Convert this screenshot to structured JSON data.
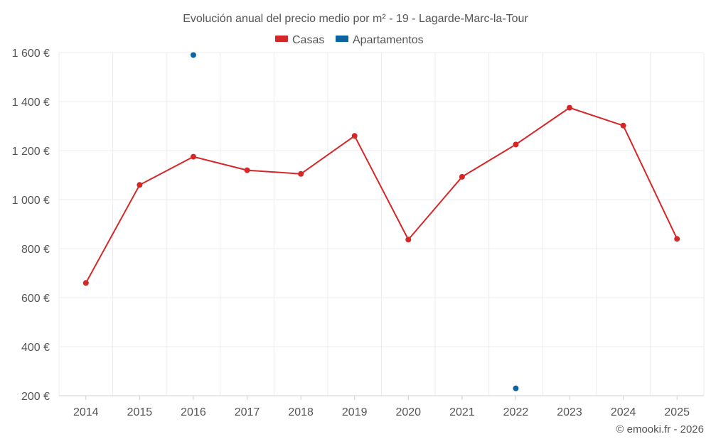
{
  "chart_data": {
    "type": "line",
    "title": "Evolución anual del precio medio por m² - 19 - Lagarde-Marc-la-Tour",
    "categories": [
      "2014",
      "2015",
      "2016",
      "2017",
      "2018",
      "2019",
      "2020",
      "2021",
      "2022",
      "2023",
      "2024",
      "2025"
    ],
    "series": [
      {
        "name": "Casas",
        "color": "#d62728",
        "values": [
          660,
          1060,
          1175,
          1120,
          1105,
          1260,
          837,
          1093,
          1225,
          1375,
          1302,
          840
        ]
      },
      {
        "name": "Apartamentos",
        "color": "#0b63a3",
        "values": [
          null,
          null,
          1590,
          null,
          null,
          null,
          null,
          null,
          230,
          null,
          null,
          null
        ]
      }
    ],
    "ylim": [
      200,
      1600
    ],
    "yticks": [
      200,
      400,
      600,
      800,
      1000,
      1200,
      1400,
      1600
    ],
    "ytick_labels": [
      "200 €",
      "400 €",
      "600 €",
      "800 €",
      "1 000 €",
      "1 200 €",
      "1 400 €",
      "1 600 €"
    ],
    "xlabel": "",
    "ylabel": "",
    "grid": true,
    "legend": "top-center"
  },
  "credit": "© emooki.fr - 2026"
}
